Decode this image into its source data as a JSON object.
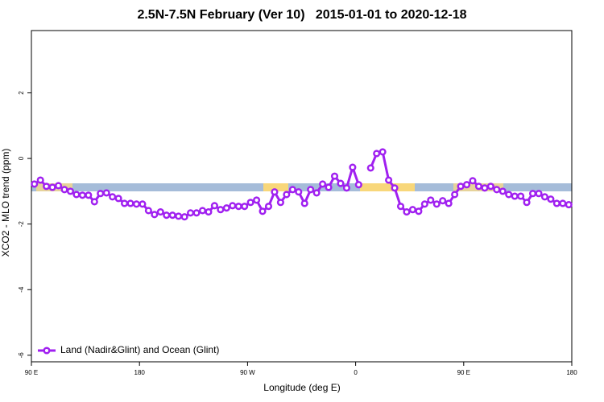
{
  "chart_data": {
    "type": "line",
    "title": "2.5N-7.5N February (Ver 10)   2015-01-01 to 2020-12-18",
    "xlabel": "Longitude (deg E)",
    "ylabel": "XCO2 - MLO trend (ppm)",
    "x": [
      92.5,
      97.5,
      102.5,
      107.5,
      112.5,
      117.5,
      122.5,
      127.5,
      132.5,
      137.5,
      142.5,
      147.5,
      152.5,
      157.5,
      162.5,
      167.5,
      172.5,
      177.5,
      182.5,
      187.5,
      192.5,
      197.5,
      202.5,
      207.5,
      212.5,
      217.5,
      222.5,
      227.5,
      232.5,
      237.5,
      242.5,
      247.5,
      252.5,
      257.5,
      262.5,
      267.5,
      272.5,
      277.5,
      282.5,
      287.5,
      292.5,
      297.5,
      302.5,
      307.5,
      312.5,
      317.5,
      322.5,
      327.5,
      332.5,
      337.5,
      342.5,
      347.5,
      352.5,
      357.5,
      362.5,
      367.5,
      372.5,
      377.5,
      382.5,
      387.5,
      392.5,
      397.5,
      402.5,
      407.5,
      412.5,
      417.5,
      422.5,
      427.5,
      432.5,
      437.5,
      442.5,
      447.5,
      452.5,
      457.5,
      462.5,
      467.5,
      472.5,
      477.5,
      482.5,
      487.5,
      492.5,
      497.5,
      502.5,
      507.5,
      512.5,
      517.5,
      522.5,
      527.5,
      532.5,
      537.5
    ],
    "series": [
      {
        "name": "Land (Nadir&Glint) and Ocean (Glint)",
        "color": "#a020f0",
        "values": [
          -0.78,
          -0.66,
          -0.85,
          -0.88,
          -0.83,
          -0.95,
          -1.0,
          -1.1,
          -1.12,
          -1.12,
          -1.32,
          -1.07,
          -1.05,
          -1.17,
          -1.22,
          -1.37,
          -1.37,
          -1.39,
          -1.39,
          -1.59,
          -1.71,
          -1.63,
          -1.73,
          -1.73,
          -1.76,
          -1.78,
          -1.66,
          -1.66,
          -1.59,
          -1.63,
          -1.44,
          -1.56,
          -1.51,
          -1.44,
          -1.46,
          -1.46,
          -1.34,
          -1.27,
          -1.61,
          -1.46,
          -1.02,
          -1.34,
          -1.1,
          -0.95,
          -1.02,
          -1.37,
          -0.95,
          -1.05,
          -0.78,
          -0.88,
          -0.54,
          -0.76,
          -0.9,
          -0.27,
          -0.8,
          null,
          -0.29,
          0.15,
          0.2,
          -0.66,
          -0.9,
          -1.46,
          -1.63,
          -1.56,
          -1.61,
          -1.39,
          -1.27,
          -1.39,
          -1.29,
          -1.37,
          -1.1,
          -0.85,
          -0.8,
          -0.68,
          -0.85,
          -0.9,
          -0.85,
          -0.95,
          -1.0,
          -1.1,
          -1.15,
          -1.15,
          -1.34,
          -1.07,
          -1.07,
          -1.17,
          -1.24,
          -1.37,
          -1.37,
          -1.41
        ]
      }
    ],
    "xlim": [
      90,
      540
    ],
    "xticks": [
      {
        "value": 90,
        "label": "90 E"
      },
      180,
      {
        "value": 270,
        "label": "90 W"
      },
      {
        "value": 360,
        "label": "0"
      },
      {
        "value": 450,
        "label": "90 E"
      },
      {
        "value": 540,
        "label": "180"
      }
    ],
    "ylim": [
      -6.2,
      3.9
    ],
    "yticks": [
      -6,
      -4,
      -2,
      0,
      2
    ],
    "legend": "bottom-left"
  }
}
